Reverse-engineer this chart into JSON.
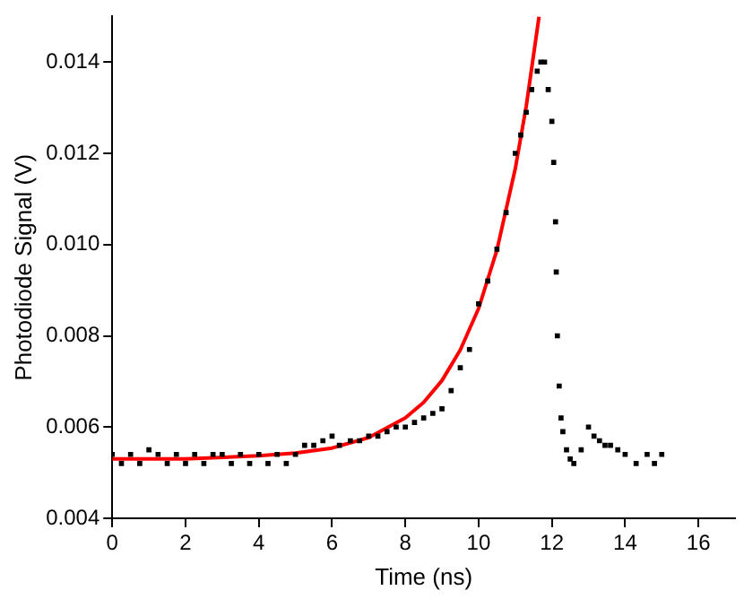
{
  "chart_data": {
    "type": "scatter",
    "xlabel": "Time (ns)",
    "ylabel": "Photodiode Signal (V)",
    "xlim": [
      0,
      17
    ],
    "xticks": [
      0,
      2,
      4,
      6,
      8,
      10,
      12,
      14,
      16
    ],
    "ylim": [
      0.004,
      0.015
    ],
    "yticks": [
      0.004,
      0.006,
      0.008,
      {
        "value": 0.01,
        "label": "0.010"
      },
      0.012,
      0.014
    ],
    "grid": false,
    "legend": false,
    "marker": "square",
    "series": [
      {
        "color": "#000000",
        "x": [
          0,
          0.25,
          0.5,
          0.75,
          1,
          1.25,
          1.5,
          1.75,
          2,
          2.25,
          2.5,
          2.75,
          3,
          3.25,
          3.5,
          3.75,
          4,
          4.25,
          4.5,
          4.75,
          5,
          5.25,
          5.5,
          5.75,
          6,
          6.2,
          6.5,
          6.75,
          7,
          7.25,
          7.5,
          7.75,
          8,
          8.25,
          8.5,
          8.75,
          9,
          9.25,
          9.5,
          9.75,
          10,
          10.25,
          10.5,
          10.75,
          11,
          11.15,
          11.3,
          11.45,
          11.6,
          11.7,
          11.8,
          11.9,
          12,
          12.05,
          12.1,
          12.12,
          12.15,
          12.2,
          12.25,
          12.3,
          12.4,
          12.5,
          12.6,
          12.8,
          13,
          13.15,
          13.3,
          13.45,
          13.6,
          13.8,
          14,
          14.3,
          14.6,
          14.8,
          15
        ],
        "values": [
          0.0054,
          0.0052,
          0.0054,
          0.0052,
          0.0055,
          0.0054,
          0.0052,
          0.0054,
          0.0052,
          0.0054,
          0.0052,
          0.0054,
          0.0054,
          0.0052,
          0.0054,
          0.0052,
          0.0054,
          0.0052,
          0.0054,
          0.0052,
          0.0054,
          0.0056,
          0.0056,
          0.0057,
          0.0058,
          0.0056,
          0.0057,
          0.0057,
          0.0058,
          0.0058,
          0.0059,
          0.006,
          0.006,
          0.0061,
          0.0062,
          0.0063,
          0.0064,
          0.0068,
          0.0073,
          0.0077,
          0.0087,
          0.0092,
          0.0099,
          0.0107,
          0.012,
          0.0124,
          0.0129,
          0.0134,
          0.0138,
          0.014,
          0.014,
          0.0134,
          0.0127,
          0.0118,
          0.0105,
          0.0094,
          0.008,
          0.0069,
          0.0062,
          0.0059,
          0.0055,
          0.0053,
          0.0052,
          0.0055,
          0.006,
          0.0058,
          0.0057,
          0.0056,
          0.0056,
          0.0055,
          0.0054,
          0.0052,
          0.0054,
          0.0052,
          0.0054
        ]
      },
      {
        "type": "line",
        "color": "#ff0000",
        "marker": "none",
        "line_style": "solid",
        "x": [
          0,
          2,
          4,
          5,
          6,
          7,
          8,
          8.5,
          9,
          9.5,
          10,
          10.5,
          11,
          11.3,
          11.65
        ],
        "values": [
          0.0053,
          0.0053,
          0.00537,
          0.00543,
          0.00554,
          0.00577,
          0.0062,
          0.00654,
          0.00702,
          0.00769,
          0.0086,
          0.00988,
          0.01166,
          0.01303,
          0.015
        ]
      }
    ]
  }
}
